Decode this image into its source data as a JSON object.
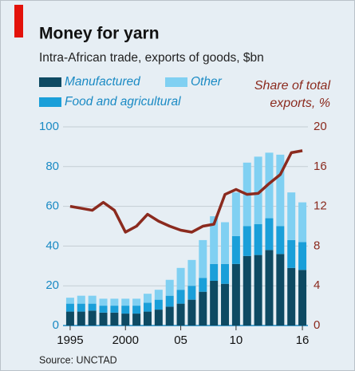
{
  "chart_data": {
    "type": "bar-line",
    "title": "Money for yarn",
    "subtitle": "Intra-African trade, exports of goods, $bn",
    "source": "Source: UNCTAD",
    "categories": [
      "1995",
      null,
      null,
      null,
      null,
      "2000",
      null,
      null,
      null,
      null,
      "05",
      null,
      null,
      null,
      null,
      "10",
      null,
      null,
      null,
      null,
      null,
      "16"
    ],
    "series": [
      {
        "name": "Manufactured",
        "color": "#0e4a63",
        "values": [
          7,
          7,
          7.5,
          6.5,
          6.5,
          6,
          6,
          7,
          8,
          9.5,
          11,
          13,
          17,
          22.5,
          21,
          31,
          35,
          35.5,
          38,
          36,
          29,
          28
        ]
      },
      {
        "name": "Food and agricultural",
        "color": "#1a9fd9",
        "values": [
          4,
          4,
          3.5,
          3.5,
          3.5,
          4,
          4,
          4.5,
          5,
          5.5,
          7,
          7,
          7,
          8.5,
          10,
          14,
          15,
          15.5,
          16,
          14,
          14,
          14
        ]
      },
      {
        "name": "Other",
        "color": "#80d0f2",
        "values": [
          3,
          4,
          4,
          3.5,
          3.5,
          3.5,
          3.5,
          4.5,
          5,
          8,
          11,
          13,
          19,
          24,
          21,
          22,
          32,
          34,
          33,
          36,
          24,
          20
        ]
      },
      {
        "name": "Share of total exports, %",
        "color": "#8b2a1e",
        "axis": "y2",
        "type": "line",
        "values": [
          12,
          11.8,
          11.6,
          12.4,
          11.6,
          9.4,
          10,
          11.2,
          10.5,
          10,
          9.6,
          9.4,
          10,
          10.2,
          13.2,
          13.7,
          13.2,
          13.3,
          14.3,
          15.2,
          17.4,
          17.6
        ]
      }
    ],
    "ylim": [
      0,
      100
    ],
    "yticks": [
      0,
      20,
      40,
      60,
      80,
      100
    ],
    "y2lim": [
      0,
      20
    ],
    "y2ticks": [
      0,
      4,
      8,
      12,
      16,
      20
    ],
    "grid": true
  }
}
